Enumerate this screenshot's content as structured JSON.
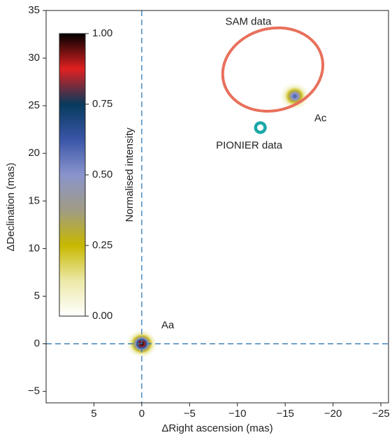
{
  "chart_data": {
    "type": "image",
    "xlabel": "ΔRight ascension (mas)",
    "ylabel": "ΔDeclination (mas)",
    "xlim": [
      10,
      -25.8
    ],
    "ylim": [
      -6.2,
      35
    ],
    "xticks": [
      5,
      0,
      {
        "value": -5,
        "label": "−5"
      },
      {
        "value": -10,
        "label": "−10"
      },
      {
        "value": -15,
        "label": "−15"
      },
      {
        "value": -20,
        "label": "−20"
      },
      {
        "value": -25,
        "label": "−25"
      }
    ],
    "yticks": [
      {
        "value": -5,
        "label": "−5"
      },
      0,
      5,
      10,
      15,
      20,
      25,
      30,
      35
    ],
    "sources": [
      {
        "name": "Aa",
        "x": 0,
        "y": 0,
        "peak": 1.0
      },
      {
        "name": "Ac",
        "x": -16,
        "y": 26,
        "peak": 0.6
      }
    ],
    "overlays": [
      {
        "name": "SAM data",
        "color": "#e8705c",
        "x": -13.7,
        "y": 28.8,
        "rx": 5.3,
        "ry": 4.3
      },
      {
        "name": "PIONIER data",
        "color": "#19a8a8",
        "x": -12.4,
        "y": 22.7,
        "rx": 0.5,
        "ry": 0.5
      }
    ],
    "colorbar": {
      "label": "Normalised intensity",
      "lim": [
        0,
        1
      ],
      "ticks": [
        {
          "value": 0,
          "label": "0.00"
        },
        {
          "value": 0.25,
          "label": "0.25"
        },
        {
          "value": 0.5,
          "label": "0.50"
        },
        {
          "value": 0.75,
          "label": "0.75"
        },
        {
          "value": 1,
          "label": "1.00"
        }
      ]
    },
    "colormap": [
      "#ffffff",
      "#ece9a8",
      "#c8b800",
      "#a09c84",
      "#8a94cc",
      "#3a56a8",
      "#073a5c",
      "#e02020",
      "#000000"
    ]
  }
}
